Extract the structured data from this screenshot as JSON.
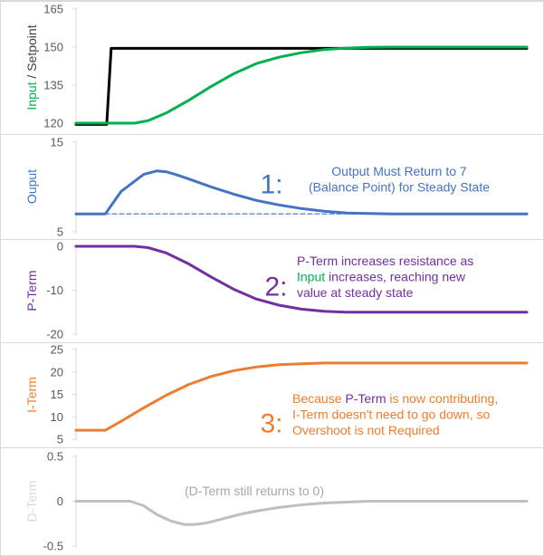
{
  "chart_data": [
    {
      "type": "line",
      "ylabel_parts": [
        {
          "text": "Input",
          "color": "#00b050"
        },
        {
          "text": " / Setpoint",
          "color": "#404040"
        }
      ],
      "yticks": [
        120,
        135,
        150,
        165
      ],
      "ylim": [
        120,
        165
      ],
      "xlim": [
        0,
        100
      ],
      "series": [
        {
          "color": "#000000",
          "x": [
            0,
            6.8,
            7.8,
            13,
            100
          ],
          "y": [
            119.5,
            119.5,
            149.5,
            149.5,
            149.5
          ]
        },
        {
          "color": "#00b050",
          "x": [
            0,
            13,
            16,
            20,
            25,
            30,
            35,
            40,
            45,
            50,
            55,
            60,
            65,
            70,
            75,
            80,
            90,
            100
          ],
          "y": [
            120,
            120,
            121,
            124,
            129,
            134.5,
            139.5,
            143.5,
            146,
            147.8,
            149,
            149.6,
            149.9,
            150,
            150,
            150,
            150,
            150
          ]
        }
      ],
      "annotations": []
    },
    {
      "type": "line",
      "ylabel_parts": [
        {
          "text": "Ouput",
          "color": "#4472c4"
        }
      ],
      "yticks": [
        5,
        15
      ],
      "ylim": [
        5,
        15
      ],
      "xlim": [
        0,
        100
      ],
      "series": [
        {
          "color": "#4472c4",
          "x": [
            0,
            6.5,
            10,
            15,
            18,
            20,
            22,
            25,
            30,
            35,
            40,
            45,
            50,
            55,
            60,
            65,
            70,
            75,
            80,
            90,
            100
          ],
          "y": [
            7,
            7,
            9.5,
            11.4,
            11.8,
            11.7,
            11.4,
            10.9,
            10,
            9.2,
            8.5,
            8,
            7.6,
            7.3,
            7.1,
            7.05,
            7,
            7,
            7,
            7,
            7
          ]
        },
        {
          "color": "#4472c4",
          "dashed": true,
          "x": [
            0,
            100
          ],
          "y": [
            7,
            7
          ]
        }
      ],
      "annotations": [
        {
          "lines": [
            {
              "parts": [
                {
                  "text": "1:",
                  "color": "#4472c4"
                }
              ]
            }
          ],
          "size": 30,
          "anchor_x": 300,
          "anchor_y": 203,
          "align": "middle"
        },
        {
          "lines": [
            {
              "parts": [
                {
                  "text": "Output Must Return to 7",
                  "color": "#4472c4"
                }
              ]
            },
            {
              "parts": [
                {
                  "text": "(Balance Point) for Steady State",
                  "color": "#4472c4"
                }
              ]
            }
          ],
          "size": 14,
          "anchor_x": 441,
          "anchor_y": 189,
          "align": "middle"
        }
      ]
    },
    {
      "type": "line",
      "ylabel_parts": [
        {
          "text": "P-Term",
          "color": "#7030a0"
        }
      ],
      "yticks": [
        -20,
        -10,
        0
      ],
      "ylim": [
        -20,
        0
      ],
      "xlim": [
        0,
        100
      ],
      "series": [
        {
          "color": "#7030a0",
          "x": [
            0,
            13,
            16,
            20,
            25,
            30,
            35,
            40,
            45,
            50,
            55,
            60,
            65,
            70,
            80,
            90,
            100
          ],
          "y": [
            0,
            0,
            -0.3,
            -1.5,
            -4,
            -7,
            -9.8,
            -12,
            -13.4,
            -14.3,
            -14.8,
            -15,
            -15,
            -15,
            -15,
            -15,
            -15
          ]
        }
      ],
      "annotations": [
        {
          "lines": [
            {
              "parts": [
                {
                  "text": "2:",
                  "color": "#7030a0"
                }
              ]
            }
          ],
          "size": 30,
          "anchor_x": 305,
          "anchor_y": 316,
          "align": "middle"
        },
        {
          "lines": [
            {
              "parts": [
                {
                  "text": "P-Term increases resistance as",
                  "color": "#7030a0"
                }
              ]
            },
            {
              "parts": [
                {
                  "text": "Input",
                  "color": "#00b050"
                },
                {
                  "text": " increases, reaching new",
                  "color": "#7030a0"
                }
              ]
            },
            {
              "parts": [
                {
                  "text": "value at steady state",
                  "color": "#7030a0"
                }
              ]
            }
          ],
          "size": 14,
          "anchor_x": 328,
          "anchor_y": 288,
          "align": "start"
        }
      ]
    },
    {
      "type": "line",
      "ylabel_parts": [
        {
          "text": "I-Term",
          "color": "#ed7d31"
        }
      ],
      "yticks": [
        5,
        10,
        15,
        20,
        25
      ],
      "ylim": [
        5,
        25
      ],
      "xlim": [
        0,
        100
      ],
      "series": [
        {
          "color": "#ed7d31",
          "x": [
            0,
            6.5,
            10,
            15,
            20,
            25,
            30,
            35,
            40,
            45,
            50,
            55,
            60,
            65,
            70,
            80,
            90,
            100
          ],
          "y": [
            7,
            7,
            9,
            12,
            14.8,
            17.2,
            19,
            20.3,
            21.1,
            21.6,
            21.8,
            22,
            22,
            22,
            22,
            22,
            22,
            22
          ]
        }
      ],
      "annotations": [
        {
          "lines": [
            {
              "parts": [
                {
                  "text": "3:",
                  "color": "#ed7d31"
                }
              ]
            }
          ],
          "size": 30,
          "anchor_x": 300,
          "anchor_y": 467,
          "align": "middle"
        },
        {
          "lines": [
            {
              "parts": [
                {
                  "text": "Because ",
                  "color": "#ed7d31"
                },
                {
                  "text": "P-Term",
                  "color": "#7030a0"
                },
                {
                  "text": " is now contributing,",
                  "color": "#ed7d31"
                }
              ]
            },
            {
              "parts": [
                {
                  "text": "I-Term doesn't need to go down, so",
                  "color": "#ed7d31"
                }
              ]
            },
            {
              "parts": [
                {
                  "text": "Overshoot is not Required",
                  "color": "#ed7d31"
                }
              ]
            }
          ],
          "size": 14,
          "anchor_x": 323,
          "anchor_y": 440,
          "align": "start"
        }
      ]
    },
    {
      "type": "line",
      "ylabel_parts": [
        {
          "text": "D-Term",
          "color": "#d9d9d9"
        }
      ],
      "yticks": [
        -0.5,
        0,
        0.5
      ],
      "ylim": [
        -0.5,
        0.5
      ],
      "xlim": [
        0,
        100
      ],
      "series": [
        {
          "color": "#bfbfbf",
          "x": [
            0,
            12,
            15,
            18,
            21,
            24,
            26,
            28,
            30,
            33,
            36,
            40,
            45,
            50,
            55,
            60,
            65,
            70,
            100
          ],
          "y": [
            0,
            0,
            -0.05,
            -0.15,
            -0.22,
            -0.26,
            -0.26,
            -0.25,
            -0.23,
            -0.19,
            -0.15,
            -0.11,
            -0.07,
            -0.04,
            -0.02,
            -0.01,
            0,
            0,
            0
          ]
        }
      ],
      "annotations": [
        {
          "lines": [
            {
              "parts": [
                {
                  "text": "(D-Term still returns to 0)",
                  "color": "#a6a6a6"
                }
              ]
            }
          ],
          "size": 14,
          "anchor_x": 281,
          "anchor_y": 542,
          "align": "middle"
        }
      ]
    }
  ]
}
